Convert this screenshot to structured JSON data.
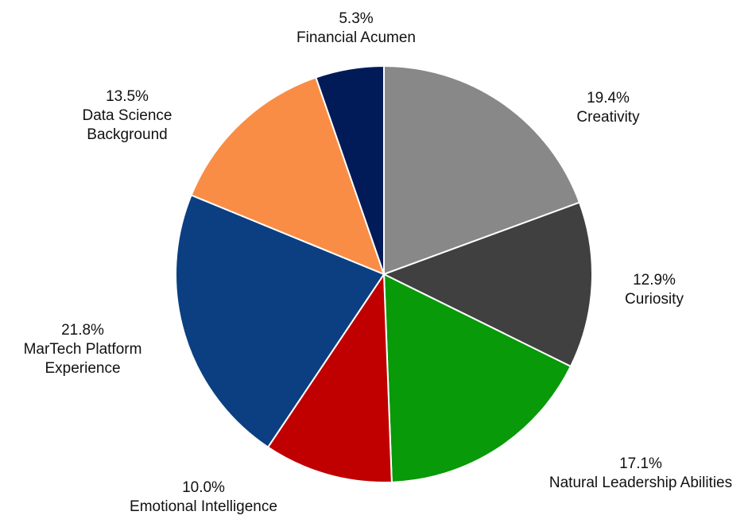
{
  "chart_data": {
    "type": "pie",
    "categories": [
      "Creativity",
      "Curiosity",
      "Natural Leadership Abilities",
      "Emotional Intelligence",
      "MarTech Platform Experience",
      "Data Science Background",
      "Financial Acumen"
    ],
    "values": [
      19.4,
      12.9,
      17.1,
      10.0,
      21.8,
      13.5,
      5.3
    ],
    "value_labels": [
      "19.4%",
      "12.9%",
      "17.1%",
      "10.0%",
      "21.8%",
      "13.5%",
      "5.3%"
    ],
    "colors": [
      "#888888",
      "#404040",
      "#089a08",
      "#c00000",
      "#0b3f82",
      "#f98d46",
      "#001b58"
    ]
  }
}
